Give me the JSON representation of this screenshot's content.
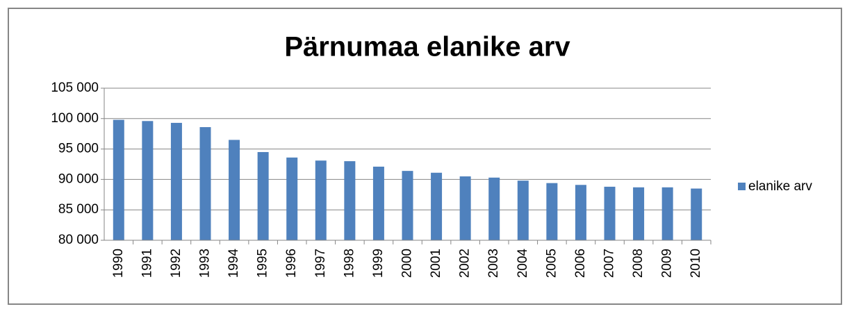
{
  "chart_data": {
    "type": "bar",
    "title": "Pärnumaa elanike arv",
    "categories": [
      "1990",
      "1991",
      "1992",
      "1993",
      "1994",
      "1995",
      "1996",
      "1997",
      "1998",
      "1999",
      "2000",
      "2001",
      "2002",
      "2003",
      "2004",
      "2005",
      "2006",
      "2007",
      "2008",
      "2009",
      "2010"
    ],
    "series": [
      {
        "name": "elanike arv",
        "color": "#4f81bd",
        "values": [
          99800,
          99600,
          99300,
          98600,
          96500,
          94500,
          93600,
          93100,
          93000,
          92100,
          91400,
          91100,
          90500,
          90300,
          89800,
          89400,
          89100,
          88800,
          88700,
          88700,
          88500
        ]
      }
    ],
    "ylim": [
      80000,
      105000
    ],
    "yticks": [
      {
        "value": 80000,
        "label": "80 000"
      },
      {
        "value": 85000,
        "label": "85 000"
      },
      {
        "value": 90000,
        "label": "90 000"
      },
      {
        "value": 95000,
        "label": "95 000"
      },
      {
        "value": 100000,
        "label": "100 000"
      },
      {
        "value": 105000,
        "label": "105 000"
      }
    ],
    "grid": true,
    "legend": "right"
  }
}
